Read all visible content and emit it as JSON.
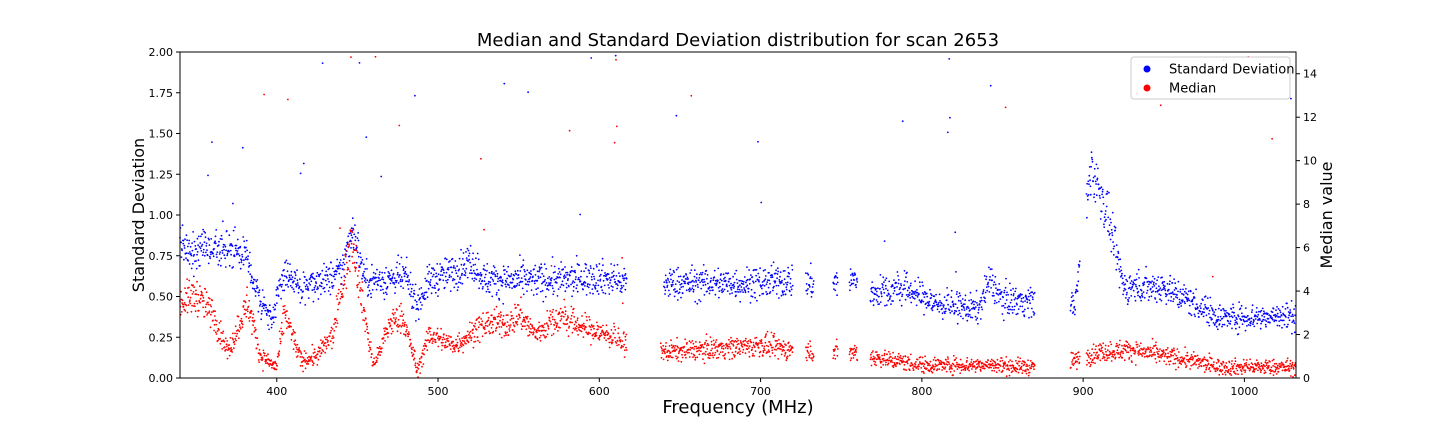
{
  "chart_data": {
    "type": "scatter",
    "title": "Median and Standard Deviation distribution for scan 2653",
    "xlabel": "Frequency (MHz)",
    "ylabel_left": "Standard Deviation",
    "ylabel_right": "Median value",
    "xlim": [
      340,
      1032
    ],
    "ylim_left": [
      0,
      2.0
    ],
    "ylim_right": [
      0,
      15
    ],
    "x_ticks": [
      "400",
      "500",
      "600",
      "700",
      "800",
      "900",
      "1000"
    ],
    "y_ticks_left": [
      "0.00",
      "0.25",
      "0.50",
      "0.75",
      "1.00",
      "1.25",
      "1.50",
      "1.75",
      "2.00"
    ],
    "y_ticks_right": [
      "0",
      "2",
      "4",
      "6",
      "8",
      "10",
      "12",
      "14"
    ],
    "legend_position": "top-right",
    "grid": false,
    "series": [
      {
        "name": "Standard Deviation",
        "axis": "left",
        "color": "#0000ff",
        "profile": [
          [
            340,
            0.82
          ],
          [
            350,
            0.74
          ],
          [
            355,
            0.85
          ],
          [
            365,
            0.78
          ],
          [
            380,
            0.78
          ],
          [
            390,
            0.45
          ],
          [
            397,
            0.39
          ],
          [
            405,
            0.65
          ],
          [
            415,
            0.55
          ],
          [
            425,
            0.57
          ],
          [
            440,
            0.65
          ],
          [
            447,
            0.92
          ],
          [
            455,
            0.6
          ],
          [
            465,
            0.6
          ],
          [
            480,
            0.62
          ],
          [
            487,
            0.45
          ],
          [
            495,
            0.6
          ],
          [
            510,
            0.65
          ],
          [
            520,
            0.72
          ],
          [
            530,
            0.6
          ],
          [
            545,
            0.6
          ],
          [
            565,
            0.6
          ],
          [
            580,
            0.6
          ],
          [
            600,
            0.62
          ],
          [
            617,
            0.58
          ],
          [
            640,
            0.58
          ],
          [
            700,
            0.58
          ],
          [
            720,
            0.6
          ],
          [
            730,
            0.58
          ],
          [
            745,
            0.58
          ],
          [
            758,
            0.6
          ],
          [
            768,
            0.52
          ],
          [
            790,
            0.55
          ],
          [
            810,
            0.45
          ],
          [
            835,
            0.42
          ],
          [
            842,
            0.6
          ],
          [
            850,
            0.48
          ],
          [
            870,
            0.47
          ],
          [
            895,
            0.45
          ],
          [
            905,
            1.3
          ],
          [
            915,
            1.0
          ],
          [
            925,
            0.56
          ],
          [
            950,
            0.56
          ],
          [
            965,
            0.48
          ],
          [
            985,
            0.37
          ],
          [
            1032,
            0.38
          ]
        ],
        "gaps": [
          [
            617,
            640
          ],
          [
            720,
            728
          ],
          [
            733,
            745
          ],
          [
            748,
            755
          ],
          [
            760,
            768
          ],
          [
            870,
            892
          ],
          [
            898,
            902
          ]
        ]
      },
      {
        "name": "Median",
        "axis": "right",
        "color": "#ff0000",
        "profile": [
          [
            340,
            3.5
          ],
          [
            350,
            3.8
          ],
          [
            360,
            3.0
          ],
          [
            370,
            1.2
          ],
          [
            382,
            3.5
          ],
          [
            390,
            1.0
          ],
          [
            400,
            0.5
          ],
          [
            405,
            3.0
          ],
          [
            415,
            0.8
          ],
          [
            425,
            1.0
          ],
          [
            435,
            2.0
          ],
          [
            440,
            4.0
          ],
          [
            447,
            6.5
          ],
          [
            452,
            4.0
          ],
          [
            460,
            0.5
          ],
          [
            470,
            2.5
          ],
          [
            478,
            2.8
          ],
          [
            485,
            1.0
          ],
          [
            487,
            0.3
          ],
          [
            495,
            2.0
          ],
          [
            510,
            1.5
          ],
          [
            520,
            2.0
          ],
          [
            530,
            2.5
          ],
          [
            545,
            2.5
          ],
          [
            550,
            3.0
          ],
          [
            560,
            2.0
          ],
          [
            575,
            2.8
          ],
          [
            585,
            2.5
          ],
          [
            595,
            2.2
          ],
          [
            605,
            2.0
          ],
          [
            617,
            1.5
          ],
          [
            640,
            1.2
          ],
          [
            700,
            1.5
          ],
          [
            720,
            1.3
          ],
          [
            730,
            1.2
          ],
          [
            745,
            1.2
          ],
          [
            758,
            1.2
          ],
          [
            768,
            1.0
          ],
          [
            800,
            0.6
          ],
          [
            840,
            0.6
          ],
          [
            870,
            0.5
          ],
          [
            895,
            0.8
          ],
          [
            910,
            1.2
          ],
          [
            930,
            1.3
          ],
          [
            960,
            0.9
          ],
          [
            985,
            0.5
          ],
          [
            1032,
            0.5
          ]
        ],
        "gaps": [
          [
            617,
            638
          ],
          [
            720,
            728
          ],
          [
            733,
            745
          ],
          [
            748,
            755
          ],
          [
            760,
            768
          ],
          [
            870,
            892
          ],
          [
            898,
            902
          ]
        ]
      }
    ]
  }
}
